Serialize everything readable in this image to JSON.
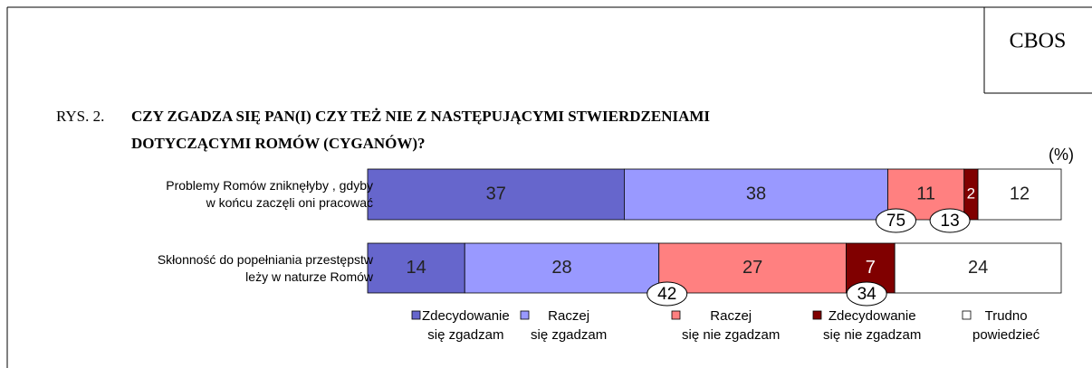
{
  "source": "CBOS",
  "chart_data": {
    "type": "stacked-barh",
    "figure_label": "RYS. 2.",
    "title": "CZY ZGADZA SIĘ PAN(I) CZY TEŻ NIE Z NASTĘPUJĄCYMI STWIERDZENIAMI",
    "subtitle": "DOTYCZĄCYMI ROMÓW (CYGANÓW)?",
    "unit": "(%)",
    "categories": [
      "Problemy  Romów zniknęłyby , gdyby\nw końcu zaczęli oni pracować",
      "Skłonność do popełniania przestępstw\nleży  w naturze Romów"
    ],
    "series": [
      {
        "name": "Zdecydowanie\nsię zgadzam",
        "color": "#6666cc",
        "values": [
          37,
          14
        ]
      },
      {
        "name": "Raczej\nsię zgadzam",
        "color": "#9999ff",
        "values": [
          38,
          28
        ]
      },
      {
        "name": "Raczej\nsię nie zgadzam",
        "color": "#ff8080",
        "values": [
          11,
          27
        ]
      },
      {
        "name": "Zdecydowanie\nsię nie zgadzam",
        "color": "#800000",
        "values": [
          2,
          7
        ]
      },
      {
        "name": "Trudno\npowiedzieć",
        "color": "#ffffff",
        "values": [
          12,
          24
        ]
      }
    ],
    "annotations": [
      [
        75,
        13
      ],
      [
        42,
        34
      ]
    ],
    "xlim": [
      0,
      100
    ]
  }
}
